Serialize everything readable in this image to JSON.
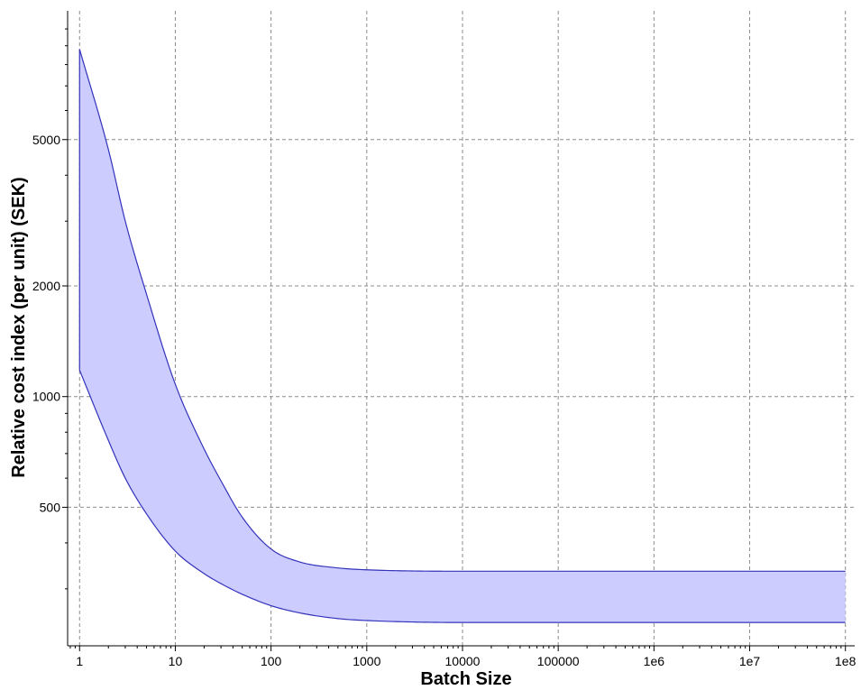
{
  "chart_data": {
    "type": "area",
    "xlabel": "Batch Size",
    "ylabel": "Relative cost index (per unit) (SEK)",
    "x_scale": "log",
    "y_scale": "log",
    "xlim": [
      0.75,
      125000000.0
    ],
    "ylim": [
      210,
      11200
    ],
    "grid": true,
    "x_ticks": [
      {
        "value": 1,
        "label": "1"
      },
      {
        "value": 10,
        "label": "10"
      },
      {
        "value": 100,
        "label": "100"
      },
      {
        "value": 1000,
        "label": "1000"
      },
      {
        "value": 10000,
        "label": "10000"
      },
      {
        "value": 100000,
        "label": "100000"
      },
      {
        "value": 1000000,
        "label": "1e6"
      },
      {
        "value": 10000000,
        "label": "1e7"
      },
      {
        "value": 100000000,
        "label": "1e8"
      }
    ],
    "y_ticks": [
      {
        "value": 500,
        "label": "500"
      },
      {
        "value": 1000,
        "label": "1000"
      },
      {
        "value": 2000,
        "label": "2000"
      },
      {
        "value": 5000,
        "label": "5000"
      }
    ],
    "series": [
      {
        "role": "upper-bound",
        "x": [
          1,
          2,
          3,
          5,
          10,
          20,
          30,
          50,
          100,
          200,
          500,
          1000,
          10000,
          100000,
          1000000,
          10000000,
          100000000
        ],
        "values": [
          8800,
          4700,
          3000,
          1900,
          1080,
          720,
          590,
          470,
          385,
          355,
          342,
          338,
          335,
          335,
          335,
          335,
          335
        ]
      },
      {
        "role": "lower-bound",
        "x": [
          1,
          2,
          3,
          5,
          10,
          20,
          30,
          50,
          100,
          200,
          500,
          1000,
          10000,
          100000,
          1000000,
          10000000,
          100000000
        ],
        "values": [
          1180,
          760,
          600,
          480,
          380,
          330,
          310,
          290,
          270,
          258,
          249,
          246,
          243,
          243,
          243,
          243,
          243
        ]
      }
    ],
    "colors": {
      "band_fill": "#ccccff",
      "band_stroke": "#3333bb",
      "grid": "#8c8c8c",
      "axis": "#000000"
    }
  }
}
